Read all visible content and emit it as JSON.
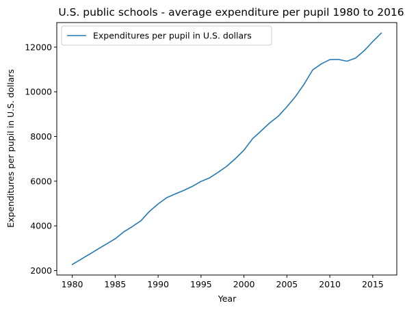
{
  "chart_data": {
    "type": "line",
    "title": "U.S. public schools - average expenditure per pupil 1980 to 2016",
    "xlabel": "Year",
    "ylabel": "Expenditures per pupil in U.S. dollars",
    "xlim": [
      1978.2,
      2017.8
    ],
    "ylim": [
      1800,
      13100
    ],
    "x_ticks": [
      1980,
      1985,
      1990,
      1995,
      2000,
      2005,
      2010,
      2015
    ],
    "y_ticks": [
      2000,
      4000,
      6000,
      8000,
      10000,
      12000
    ],
    "grid": false,
    "legend_position": "upper-left",
    "series": [
      {
        "name": "Expenditures per pupil in U.S. dollars",
        "color": "#1f77b4",
        "x": [
          1980,
          1981,
          1982,
          1983,
          1984,
          1985,
          1986,
          1987,
          1988,
          1989,
          1990,
          1991,
          1992,
          1993,
          1994,
          1995,
          1996,
          1997,
          1998,
          1999,
          2000,
          2001,
          2002,
          2003,
          2004,
          2005,
          2006,
          2007,
          2008,
          2009,
          2010,
          2011,
          2012,
          2013,
          2014,
          2015,
          2016
        ],
        "values": [
          2270,
          2500,
          2730,
          2960,
          3190,
          3420,
          3730,
          3970,
          4230,
          4650,
          4980,
          5260,
          5430,
          5590,
          5770,
          5990,
          6150,
          6400,
          6670,
          7010,
          7390,
          7900,
          8250,
          8610,
          8910,
          9330,
          9790,
          10340,
          10980,
          11250,
          11440,
          11450,
          11370,
          11510,
          11840,
          12250,
          12630
        ]
      }
    ]
  }
}
